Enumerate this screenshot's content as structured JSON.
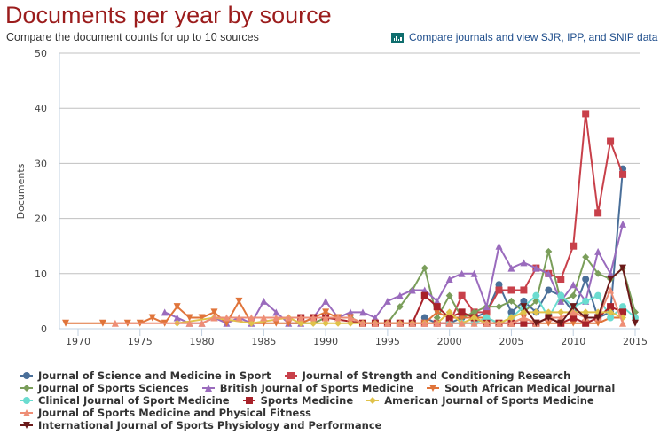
{
  "header": {
    "title": "Documents per year by source",
    "subtitle": "Compare the document counts for up to 10 sources",
    "compare_link": "Compare journals and view SJR, IPP, and SNIP data",
    "compare_icon": "bar-chart-icon"
  },
  "chart_data": {
    "type": "line",
    "title": "Documents per year by source",
    "subtitle": "Compare the document counts for up to 10 sources",
    "xlabel": "",
    "ylabel": "Documents",
    "xlim": [
      1969,
      2015
    ],
    "ylim": [
      0,
      50
    ],
    "x_ticks": [
      1970,
      1975,
      1980,
      1985,
      1990,
      1995,
      2000,
      2005,
      2010,
      2015
    ],
    "y_ticks": [
      0,
      10,
      20,
      30,
      40,
      50
    ],
    "grid": true,
    "legend_position": "bottom",
    "series": [
      {
        "name": "Journal of Science and Medicine in Sport",
        "color": "#4a6f99",
        "marker": "circle",
        "points": [
          [
            1998,
            2
          ],
          [
            1999,
            1
          ],
          [
            2000,
            1
          ],
          [
            2001,
            2
          ],
          [
            2002,
            2
          ],
          [
            2003,
            3
          ],
          [
            2004,
            8
          ],
          [
            2005,
            3
          ],
          [
            2006,
            5
          ],
          [
            2007,
            3
          ],
          [
            2008,
            7
          ],
          [
            2009,
            6
          ],
          [
            2010,
            3
          ],
          [
            2011,
            9
          ],
          [
            2012,
            2
          ],
          [
            2013,
            3
          ],
          [
            2014,
            29
          ]
        ]
      },
      {
        "name": "Journal of Strength and Conditioning Research",
        "color": "#c8404a",
        "marker": "square",
        "points": [
          [
            1998,
            1
          ],
          [
            1999,
            1
          ],
          [
            2000,
            1
          ],
          [
            2001,
            6
          ],
          [
            2002,
            3
          ],
          [
            2003,
            3
          ],
          [
            2004,
            7
          ],
          [
            2005,
            7
          ],
          [
            2006,
            7
          ],
          [
            2007,
            11
          ],
          [
            2008,
            10
          ],
          [
            2009,
            9
          ],
          [
            2010,
            15
          ],
          [
            2011,
            39
          ],
          [
            2012,
            21
          ],
          [
            2013,
            34
          ],
          [
            2014,
            28
          ]
        ]
      },
      {
        "name": "Journal of Sports Sciences",
        "color": "#7a9e5a",
        "marker": "diamond",
        "points": [
          [
            1988,
            1
          ],
          [
            1989,
            1
          ],
          [
            1990,
            2
          ],
          [
            1991,
            2
          ],
          [
            1992,
            2
          ],
          [
            1993,
            1
          ],
          [
            1994,
            1
          ],
          [
            1995,
            1
          ],
          [
            1996,
            4
          ],
          [
            1997,
            7
          ],
          [
            1998,
            11
          ],
          [
            1999,
            2
          ],
          [
            2000,
            6
          ],
          [
            2001,
            2
          ],
          [
            2002,
            3
          ],
          [
            2003,
            4
          ],
          [
            2004,
            4
          ],
          [
            2005,
            5
          ],
          [
            2006,
            3
          ],
          [
            2007,
            5
          ],
          [
            2008,
            14
          ],
          [
            2009,
            5
          ],
          [
            2010,
            6
          ],
          [
            2011,
            13
          ],
          [
            2012,
            10
          ],
          [
            2013,
            9
          ],
          [
            2014,
            11
          ],
          [
            2015,
            3
          ]
        ]
      },
      {
        "name": "British Journal of Sports Medicine",
        "color": "#9a6bbd",
        "marker": "triangle-up",
        "points": [
          [
            1977,
            3
          ],
          [
            1978,
            2
          ],
          [
            1979,
            1
          ],
          [
            1980,
            1
          ],
          [
            1981,
            2
          ],
          [
            1982,
            1
          ],
          [
            1983,
            2
          ],
          [
            1984,
            1
          ],
          [
            1985,
            5
          ],
          [
            1986,
            3
          ],
          [
            1987,
            1
          ],
          [
            1988,
            1
          ],
          [
            1989,
            2
          ],
          [
            1990,
            5
          ],
          [
            1991,
            2
          ],
          [
            1992,
            3
          ],
          [
            1993,
            3
          ],
          [
            1994,
            2
          ],
          [
            1995,
            5
          ],
          [
            1996,
            6
          ],
          [
            1997,
            7
          ],
          [
            1998,
            7
          ],
          [
            1999,
            5
          ],
          [
            2000,
            9
          ],
          [
            2001,
            10
          ],
          [
            2002,
            10
          ],
          [
            2003,
            4
          ],
          [
            2004,
            15
          ],
          [
            2005,
            11
          ],
          [
            2006,
            12
          ],
          [
            2007,
            11
          ],
          [
            2008,
            10
          ],
          [
            2009,
            5
          ],
          [
            2010,
            8
          ],
          [
            2011,
            5
          ],
          [
            2012,
            14
          ],
          [
            2013,
            10
          ],
          [
            2014,
            19
          ]
        ]
      },
      {
        "name": "South African Medical Journal",
        "color": "#e0743a",
        "marker": "triangle-down",
        "points": [
          [
            1969,
            1
          ],
          [
            1972,
            1
          ],
          [
            1974,
            1
          ],
          [
            1975,
            1
          ],
          [
            1976,
            2
          ],
          [
            1977,
            1
          ],
          [
            1978,
            4
          ],
          [
            1979,
            2
          ],
          [
            1980,
            2
          ],
          [
            1981,
            3
          ],
          [
            1982,
            1
          ],
          [
            1983,
            5
          ],
          [
            1984,
            1
          ],
          [
            1985,
            1
          ],
          [
            1986,
            1
          ],
          [
            1987,
            1
          ],
          [
            1988,
            1
          ],
          [
            1989,
            2
          ],
          [
            1990,
            3
          ],
          [
            1991,
            2
          ],
          [
            1992,
            2
          ],
          [
            1993,
            1
          ],
          [
            1994,
            1
          ],
          [
            1995,
            1
          ],
          [
            1996,
            1
          ],
          [
            1997,
            1
          ],
          [
            1998,
            1
          ],
          [
            1999,
            3
          ],
          [
            2000,
            2
          ],
          [
            2001,
            2
          ],
          [
            2002,
            2
          ],
          [
            2003,
            2
          ],
          [
            2004,
            1
          ],
          [
            2005,
            1
          ],
          [
            2006,
            2
          ],
          [
            2007,
            1
          ],
          [
            2008,
            1
          ],
          [
            2009,
            1
          ],
          [
            2010,
            1
          ],
          [
            2011,
            1
          ],
          [
            2012,
            1
          ],
          [
            2013,
            2
          ],
          [
            2014,
            2
          ]
        ]
      },
      {
        "name": "Clinical Journal of Sport Medicine",
        "color": "#6bdcd0",
        "marker": "circle",
        "points": [
          [
            2000,
            1
          ],
          [
            2001,
            1
          ],
          [
            2002,
            1
          ],
          [
            2003,
            2
          ],
          [
            2004,
            1
          ],
          [
            2005,
            2
          ],
          [
            2006,
            4
          ],
          [
            2007,
            6
          ],
          [
            2008,
            2
          ],
          [
            2009,
            6
          ],
          [
            2010,
            4
          ],
          [
            2011,
            5
          ],
          [
            2012,
            6
          ],
          [
            2013,
            2
          ],
          [
            2014,
            4
          ],
          [
            2015,
            2
          ]
        ]
      },
      {
        "name": "Sports Medicine",
        "color": "#a8222a",
        "marker": "square",
        "points": [
          [
            1988,
            2
          ],
          [
            1989,
            2
          ],
          [
            1990,
            2
          ],
          [
            1993,
            1
          ],
          [
            1994,
            1
          ],
          [
            1995,
            1
          ],
          [
            1996,
            1
          ],
          [
            1997,
            1
          ],
          [
            1998,
            6
          ],
          [
            1999,
            4
          ],
          [
            2000,
            2
          ],
          [
            2001,
            3
          ],
          [
            2002,
            2
          ],
          [
            2003,
            1
          ],
          [
            2004,
            1
          ],
          [
            2005,
            1
          ],
          [
            2006,
            1
          ],
          [
            2007,
            1
          ],
          [
            2008,
            2
          ],
          [
            2009,
            1
          ],
          [
            2010,
            2
          ],
          [
            2011,
            1
          ],
          [
            2012,
            2
          ],
          [
            2013,
            4
          ],
          [
            2014,
            3
          ]
        ]
      },
      {
        "name": "American Journal of Sports Medicine",
        "color": "#e0c24a",
        "marker": "diamond",
        "points": [
          [
            1978,
            1
          ],
          [
            1981,
            2
          ],
          [
            1984,
            1
          ],
          [
            1987,
            2
          ],
          [
            1988,
            1
          ],
          [
            1989,
            1
          ],
          [
            1990,
            1
          ],
          [
            1991,
            1
          ],
          [
            1992,
            1
          ],
          [
            1993,
            1
          ],
          [
            1994,
            1
          ],
          [
            1995,
            1
          ],
          [
            1996,
            1
          ],
          [
            1997,
            1
          ],
          [
            1998,
            1
          ],
          [
            1999,
            1
          ],
          [
            2000,
            3
          ],
          [
            2001,
            1
          ],
          [
            2002,
            2
          ],
          [
            2003,
            1
          ],
          [
            2004,
            1
          ],
          [
            2005,
            2
          ],
          [
            2006,
            3
          ],
          [
            2007,
            3
          ],
          [
            2008,
            3
          ],
          [
            2009,
            3
          ],
          [
            2010,
            3
          ],
          [
            2011,
            3
          ],
          [
            2012,
            3
          ],
          [
            2013,
            3
          ],
          [
            2014,
            2
          ]
        ]
      },
      {
        "name": "Journal of Sports Medicine and Physical Fitness",
        "color": "#ee8e76",
        "marker": "triangle-up",
        "points": [
          [
            1973,
            1
          ],
          [
            1979,
            1
          ],
          [
            1980,
            1
          ],
          [
            1981,
            2
          ],
          [
            1982,
            2
          ],
          [
            1983,
            2
          ],
          [
            1984,
            2
          ],
          [
            1985,
            2
          ],
          [
            1986,
            2
          ],
          [
            1987,
            2
          ],
          [
            1988,
            2
          ],
          [
            1989,
            2
          ],
          [
            1990,
            2
          ],
          [
            1991,
            2
          ],
          [
            1992,
            2
          ],
          [
            1993,
            1
          ],
          [
            1994,
            1
          ],
          [
            1995,
            1
          ],
          [
            1996,
            1
          ],
          [
            1997,
            1
          ],
          [
            1998,
            1
          ],
          [
            1999,
            1
          ],
          [
            2000,
            1
          ],
          [
            2001,
            1
          ],
          [
            2002,
            1
          ],
          [
            2003,
            1
          ],
          [
            2004,
            1
          ],
          [
            2005,
            1
          ],
          [
            2006,
            2
          ],
          [
            2007,
            1
          ],
          [
            2008,
            2
          ],
          [
            2009,
            2
          ],
          [
            2010,
            3
          ],
          [
            2011,
            2
          ],
          [
            2012,
            2
          ],
          [
            2013,
            7
          ],
          [
            2014,
            1
          ]
        ]
      },
      {
        "name": "International Journal of Sports Physiology and Performance",
        "color": "#6b1a1a",
        "marker": "triangle-down",
        "points": [
          [
            2006,
            4
          ],
          [
            2007,
            1
          ],
          [
            2008,
            2
          ],
          [
            2009,
            1
          ],
          [
            2010,
            4
          ],
          [
            2011,
            2
          ],
          [
            2012,
            2
          ],
          [
            2013,
            9
          ],
          [
            2014,
            11
          ],
          [
            2015,
            1
          ]
        ]
      }
    ]
  }
}
